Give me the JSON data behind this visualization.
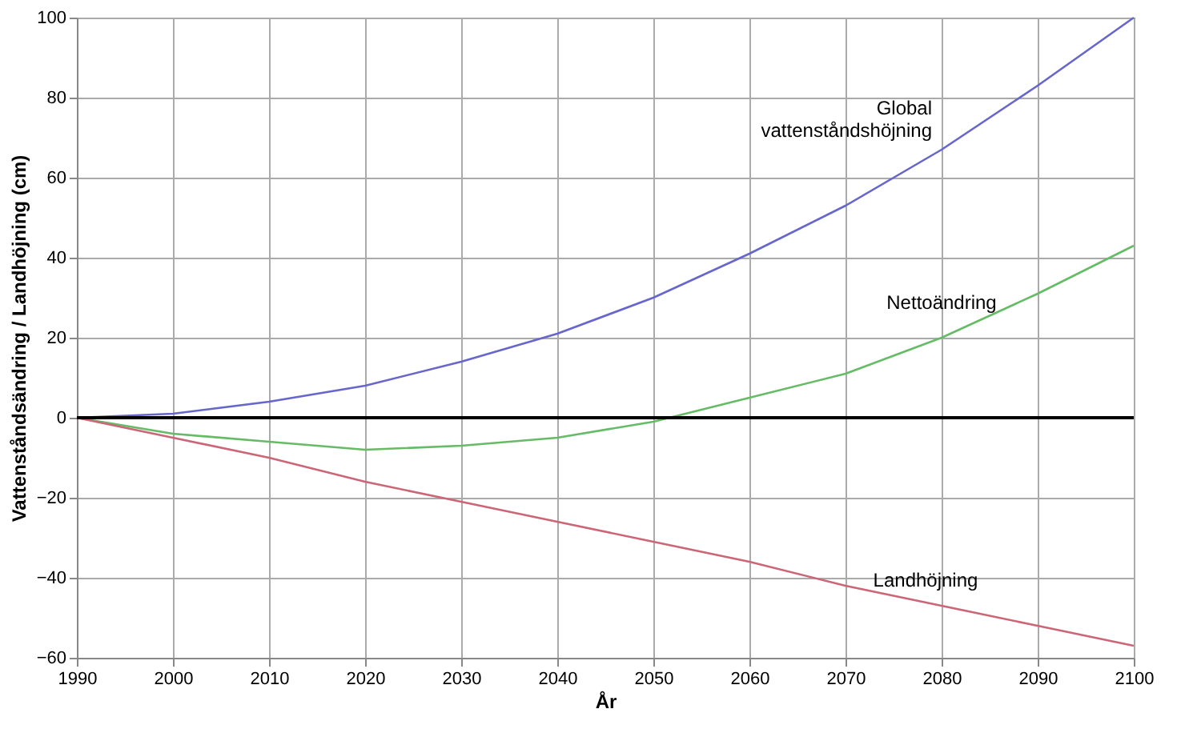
{
  "chart_data": {
    "type": "line",
    "xlabel": "År",
    "ylabel": "Vattenståndsändring / Landhöjning (cm)",
    "x": [
      1990,
      2000,
      2010,
      2020,
      2030,
      2040,
      2050,
      2060,
      2070,
      2080,
      2090,
      2100
    ],
    "series": [
      {
        "name": "Global vattenståndshöjning",
        "color": "#6666cc",
        "values": [
          0,
          1,
          4,
          8,
          14,
          21,
          30,
          41,
          53,
          67,
          83,
          100
        ]
      },
      {
        "name": "Nettoändring",
        "color": "#66bb66",
        "values": [
          0,
          -4,
          -6,
          -8,
          -7,
          -5,
          -1,
          5,
          11,
          20,
          31,
          43
        ]
      },
      {
        "name": "Landhöjning",
        "color": "#cc6677",
        "values": [
          0,
          -5,
          -10,
          -16,
          -21,
          -26,
          -31,
          -36,
          -42,
          -47,
          -52,
          -57
        ]
      }
    ],
    "ref_lines": [
      {
        "axis": "y",
        "value": 0,
        "color": "#000000"
      }
    ],
    "xlim": [
      1990,
      2100
    ],
    "xticks": [
      1990,
      2000,
      2010,
      2020,
      2030,
      2040,
      2050,
      2060,
      2070,
      2080,
      2090,
      2100
    ],
    "ylim": [
      -60,
      100
    ],
    "yticks": [
      -60,
      -40,
      -20,
      0,
      20,
      40,
      60,
      80,
      100
    ],
    "grid": true,
    "marker": "none",
    "line_style": "solid"
  }
}
